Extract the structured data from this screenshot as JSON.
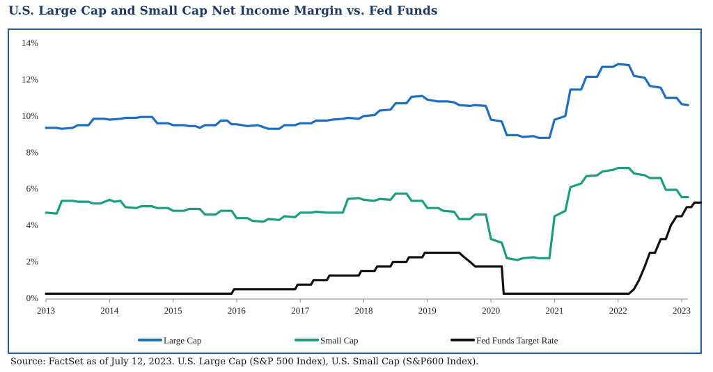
{
  "title": "U.S. Large Cap and Small Cap Net Income Margin vs. Fed Funds",
  "source": "Source: FactSet as of July 12, 2023. U.S. Large Cap (S&P 500 Index), U.S. Small Cap (S&P600 Index).",
  "colors": {
    "large_cap": "#1f6dc0",
    "small_cap": "#1a9e7e",
    "fed_funds": "#111111",
    "frame": "#1f5aa6",
    "title": "#1d3a63"
  },
  "chart_data": {
    "type": "line",
    "title": "U.S. Large Cap and Small Cap Net Income Margin vs. Fed Funds",
    "xlabel": "",
    "ylabel": "",
    "xlim": [
      2013.0,
      2023.15
    ],
    "ylim": [
      0,
      14
    ],
    "y_ticks": [
      0,
      2,
      4,
      6,
      8,
      10,
      12,
      14
    ],
    "y_tick_labels": [
      "0%",
      "2%",
      "4%",
      "6%",
      "8%",
      "10%",
      "12%",
      "14%"
    ],
    "x_ticks": [
      2013,
      2014,
      2015,
      2016,
      2017,
      2018,
      2019,
      2020,
      2021,
      2022,
      2023
    ],
    "x_tick_labels": [
      "2013",
      "2014",
      "2015",
      "2016",
      "2017",
      "2018",
      "2019",
      "2020",
      "2021",
      "2022",
      "2023"
    ],
    "grid": false,
    "legend_placement": "bottom",
    "series": [
      {
        "name": "Large Cap",
        "color": "#1f6dc0",
        "points": [
          [
            2013.0,
            9.35
          ],
          [
            2013.17,
            9.35
          ],
          [
            2013.25,
            9.3
          ],
          [
            2013.42,
            9.35
          ],
          [
            2013.5,
            9.5
          ],
          [
            2013.67,
            9.5
          ],
          [
            2013.75,
            9.85
          ],
          [
            2013.92,
            9.85
          ],
          [
            2014.0,
            9.8
          ],
          [
            2014.17,
            9.85
          ],
          [
            2014.25,
            9.9
          ],
          [
            2014.42,
            9.9
          ],
          [
            2014.5,
            9.95
          ],
          [
            2014.67,
            9.95
          ],
          [
            2014.75,
            9.6
          ],
          [
            2014.92,
            9.6
          ],
          [
            2015.0,
            9.5
          ],
          [
            2015.17,
            9.5
          ],
          [
            2015.25,
            9.45
          ],
          [
            2015.35,
            9.45
          ],
          [
            2015.42,
            9.35
          ],
          [
            2015.5,
            9.5
          ],
          [
            2015.67,
            9.5
          ],
          [
            2015.75,
            9.75
          ],
          [
            2015.85,
            9.75
          ],
          [
            2015.92,
            9.55
          ],
          [
            2016.0,
            9.55
          ],
          [
            2016.17,
            9.45
          ],
          [
            2016.33,
            9.5
          ],
          [
            2016.5,
            9.3
          ],
          [
            2016.67,
            9.3
          ],
          [
            2016.75,
            9.5
          ],
          [
            2016.92,
            9.5
          ],
          [
            2017.0,
            9.6
          ],
          [
            2017.17,
            9.6
          ],
          [
            2017.25,
            9.75
          ],
          [
            2017.42,
            9.75
          ],
          [
            2017.5,
            9.8
          ],
          [
            2017.67,
            9.85
          ],
          [
            2017.75,
            9.9
          ],
          [
            2017.92,
            9.85
          ],
          [
            2018.0,
            10.0
          ],
          [
            2018.17,
            10.05
          ],
          [
            2018.25,
            10.3
          ],
          [
            2018.42,
            10.35
          ],
          [
            2018.5,
            10.7
          ],
          [
            2018.67,
            10.7
          ],
          [
            2018.75,
            11.05
          ],
          [
            2018.92,
            11.1
          ],
          [
            2019.0,
            10.9
          ],
          [
            2019.17,
            10.8
          ],
          [
            2019.33,
            10.8
          ],
          [
            2019.42,
            10.75
          ],
          [
            2019.5,
            10.6
          ],
          [
            2019.67,
            10.55
          ],
          [
            2019.75,
            10.6
          ],
          [
            2019.92,
            10.55
          ],
          [
            2020.0,
            9.8
          ],
          [
            2020.17,
            9.7
          ],
          [
            2020.25,
            8.95
          ],
          [
            2020.42,
            8.95
          ],
          [
            2020.5,
            8.85
          ],
          [
            2020.67,
            8.9
          ],
          [
            2020.75,
            8.8
          ],
          [
            2020.92,
            8.8
          ],
          [
            2021.0,
            9.8
          ],
          [
            2021.17,
            10.0
          ],
          [
            2021.25,
            11.45
          ],
          [
            2021.42,
            11.45
          ],
          [
            2021.5,
            12.15
          ],
          [
            2021.67,
            12.15
          ],
          [
            2021.75,
            12.7
          ],
          [
            2021.92,
            12.7
          ],
          [
            2022.0,
            12.85
          ],
          [
            2022.17,
            12.8
          ],
          [
            2022.25,
            12.2
          ],
          [
            2022.42,
            12.1
          ],
          [
            2022.5,
            11.65
          ],
          [
            2022.67,
            11.55
          ],
          [
            2022.75,
            11.0
          ],
          [
            2022.92,
            11.0
          ],
          [
            2023.0,
            10.65
          ],
          [
            2023.1,
            10.6
          ]
        ]
      },
      {
        "name": "Small Cap",
        "color": "#1a9e7e",
        "points": [
          [
            2013.0,
            4.7
          ],
          [
            2013.17,
            4.65
          ],
          [
            2013.25,
            5.35
          ],
          [
            2013.42,
            5.35
          ],
          [
            2013.5,
            5.3
          ],
          [
            2013.67,
            5.3
          ],
          [
            2013.75,
            5.2
          ],
          [
            2013.85,
            5.2
          ],
          [
            2014.0,
            5.4
          ],
          [
            2014.08,
            5.3
          ],
          [
            2014.17,
            5.35
          ],
          [
            2014.25,
            5.0
          ],
          [
            2014.42,
            4.95
          ],
          [
            2014.5,
            5.05
          ],
          [
            2014.67,
            5.05
          ],
          [
            2014.75,
            4.95
          ],
          [
            2014.92,
            4.95
          ],
          [
            2015.0,
            4.8
          ],
          [
            2015.17,
            4.8
          ],
          [
            2015.25,
            4.9
          ],
          [
            2015.42,
            4.9
          ],
          [
            2015.5,
            4.6
          ],
          [
            2015.67,
            4.6
          ],
          [
            2015.75,
            4.8
          ],
          [
            2015.92,
            4.8
          ],
          [
            2016.0,
            4.4
          ],
          [
            2016.17,
            4.4
          ],
          [
            2016.25,
            4.25
          ],
          [
            2016.42,
            4.2
          ],
          [
            2016.5,
            4.35
          ],
          [
            2016.67,
            4.3
          ],
          [
            2016.75,
            4.5
          ],
          [
            2016.92,
            4.45
          ],
          [
            2017.0,
            4.7
          ],
          [
            2017.17,
            4.7
          ],
          [
            2017.25,
            4.75
          ],
          [
            2017.42,
            4.7
          ],
          [
            2017.5,
            4.7
          ],
          [
            2017.67,
            4.7
          ],
          [
            2017.75,
            5.45
          ],
          [
            2017.92,
            5.5
          ],
          [
            2018.0,
            5.4
          ],
          [
            2018.17,
            5.35
          ],
          [
            2018.25,
            5.45
          ],
          [
            2018.42,
            5.4
          ],
          [
            2018.5,
            5.75
          ],
          [
            2018.67,
            5.75
          ],
          [
            2018.75,
            5.35
          ],
          [
            2018.92,
            5.35
          ],
          [
            2019.0,
            4.95
          ],
          [
            2019.17,
            4.95
          ],
          [
            2019.25,
            4.8
          ],
          [
            2019.42,
            4.75
          ],
          [
            2019.5,
            4.35
          ],
          [
            2019.67,
            4.35
          ],
          [
            2019.75,
            4.6
          ],
          [
            2019.92,
            4.6
          ],
          [
            2020.0,
            3.25
          ],
          [
            2020.17,
            3.05
          ],
          [
            2020.25,
            2.2
          ],
          [
            2020.42,
            2.1
          ],
          [
            2020.5,
            2.2
          ],
          [
            2020.67,
            2.25
          ],
          [
            2020.75,
            2.2
          ],
          [
            2020.92,
            2.2
          ],
          [
            2021.0,
            4.5
          ],
          [
            2021.17,
            4.8
          ],
          [
            2021.25,
            6.1
          ],
          [
            2021.42,
            6.3
          ],
          [
            2021.5,
            6.7
          ],
          [
            2021.67,
            6.75
          ],
          [
            2021.75,
            6.95
          ],
          [
            2021.92,
            7.05
          ],
          [
            2022.0,
            7.15
          ],
          [
            2022.17,
            7.15
          ],
          [
            2022.25,
            6.85
          ],
          [
            2022.42,
            6.75
          ],
          [
            2022.5,
            6.6
          ],
          [
            2022.67,
            6.6
          ],
          [
            2022.75,
            5.95
          ],
          [
            2022.92,
            5.95
          ],
          [
            2023.0,
            5.55
          ],
          [
            2023.1,
            5.55
          ]
        ]
      },
      {
        "name": "Fed Funds Target Rate",
        "color": "#111111",
        "points": [
          [
            2013.0,
            0.25
          ],
          [
            2015.92,
            0.25
          ],
          [
            2015.96,
            0.5
          ],
          [
            2016.92,
            0.5
          ],
          [
            2016.96,
            0.75
          ],
          [
            2017.17,
            0.75
          ],
          [
            2017.21,
            1.0
          ],
          [
            2017.42,
            1.0
          ],
          [
            2017.46,
            1.25
          ],
          [
            2017.92,
            1.25
          ],
          [
            2017.96,
            1.5
          ],
          [
            2018.17,
            1.5
          ],
          [
            2018.21,
            1.75
          ],
          [
            2018.42,
            1.75
          ],
          [
            2018.46,
            2.0
          ],
          [
            2018.67,
            2.0
          ],
          [
            2018.71,
            2.25
          ],
          [
            2018.92,
            2.25
          ],
          [
            2018.96,
            2.5
          ],
          [
            2019.5,
            2.5
          ],
          [
            2019.58,
            2.25
          ],
          [
            2019.67,
            2.0
          ],
          [
            2019.75,
            1.75
          ],
          [
            2020.17,
            1.75
          ],
          [
            2020.2,
            0.25
          ],
          [
            2022.17,
            0.25
          ],
          [
            2022.25,
            0.5
          ],
          [
            2022.33,
            1.0
          ],
          [
            2022.42,
            1.75
          ],
          [
            2022.5,
            2.5
          ],
          [
            2022.58,
            2.5
          ],
          [
            2022.67,
            3.25
          ],
          [
            2022.75,
            3.25
          ],
          [
            2022.83,
            4.0
          ],
          [
            2022.92,
            4.5
          ],
          [
            2023.0,
            4.5
          ],
          [
            2023.08,
            5.0
          ],
          [
            2023.15,
            5.0
          ],
          [
            2023.2,
            5.25
          ],
          [
            2023.3,
            5.25
          ]
        ]
      }
    ]
  }
}
